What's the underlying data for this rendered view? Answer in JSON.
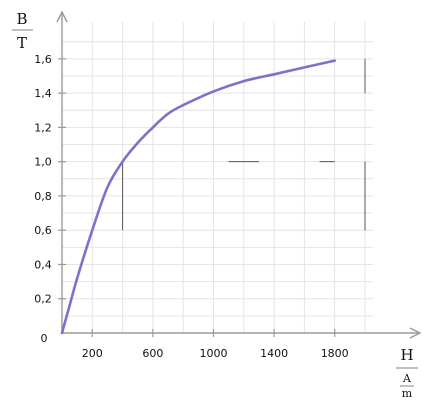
{
  "chart_data": {
    "type": "line",
    "ylabel_numerator": "B",
    "ylabel_denominator": "T",
    "xlabel_numerator": "H",
    "xlabel_denominator_top": "A",
    "xlabel_denominator_bottom": "m",
    "origin_label": "0",
    "xlim": [
      0,
      2000
    ],
    "ylim": [
      0,
      1.85
    ],
    "x_ticks": [
      "200",
      "600",
      "1000",
      "1400",
      "1800"
    ],
    "x_tick_values": [
      200,
      600,
      1000,
      1400,
      1800
    ],
    "y_ticks": [
      "0,2",
      "0,4",
      "0,6",
      "0,8",
      "1,0",
      "1,2",
      "1,4",
      "1,6"
    ],
    "y_tick_values": [
      0.2,
      0.4,
      0.6,
      0.8,
      1.0,
      1.2,
      1.4,
      1.6
    ],
    "grid": true,
    "series": [
      {
        "color": "#7d72c8",
        "x": [
          0,
          50,
          100,
          200,
          300,
          400,
          500,
          600,
          700,
          800,
          1000,
          1200,
          1400,
          1600,
          1800
        ],
        "y": [
          0,
          0.16,
          0.32,
          0.6,
          0.85,
          1.0,
          1.11,
          1.2,
          1.28,
          1.33,
          1.41,
          1.47,
          1.51,
          1.55,
          1.59
        ]
      }
    ],
    "annotations": [
      {
        "type": "vertical-guide",
        "x": 400,
        "from_y": 0.6,
        "to_y": 1.0
      },
      {
        "type": "horizontal-guide",
        "y": 1.0,
        "from_x": 1100,
        "to_x": 1300
      },
      {
        "type": "horizontal-guide",
        "y": 1.0,
        "from_x": 1700,
        "to_x": 1800
      },
      {
        "type": "vertical-guide",
        "x": 2000,
        "from_y": 0.6,
        "to_y": 1.0
      },
      {
        "type": "vertical-guide",
        "x": 2000,
        "from_y": 1.4,
        "to_y": 1.6
      }
    ]
  }
}
